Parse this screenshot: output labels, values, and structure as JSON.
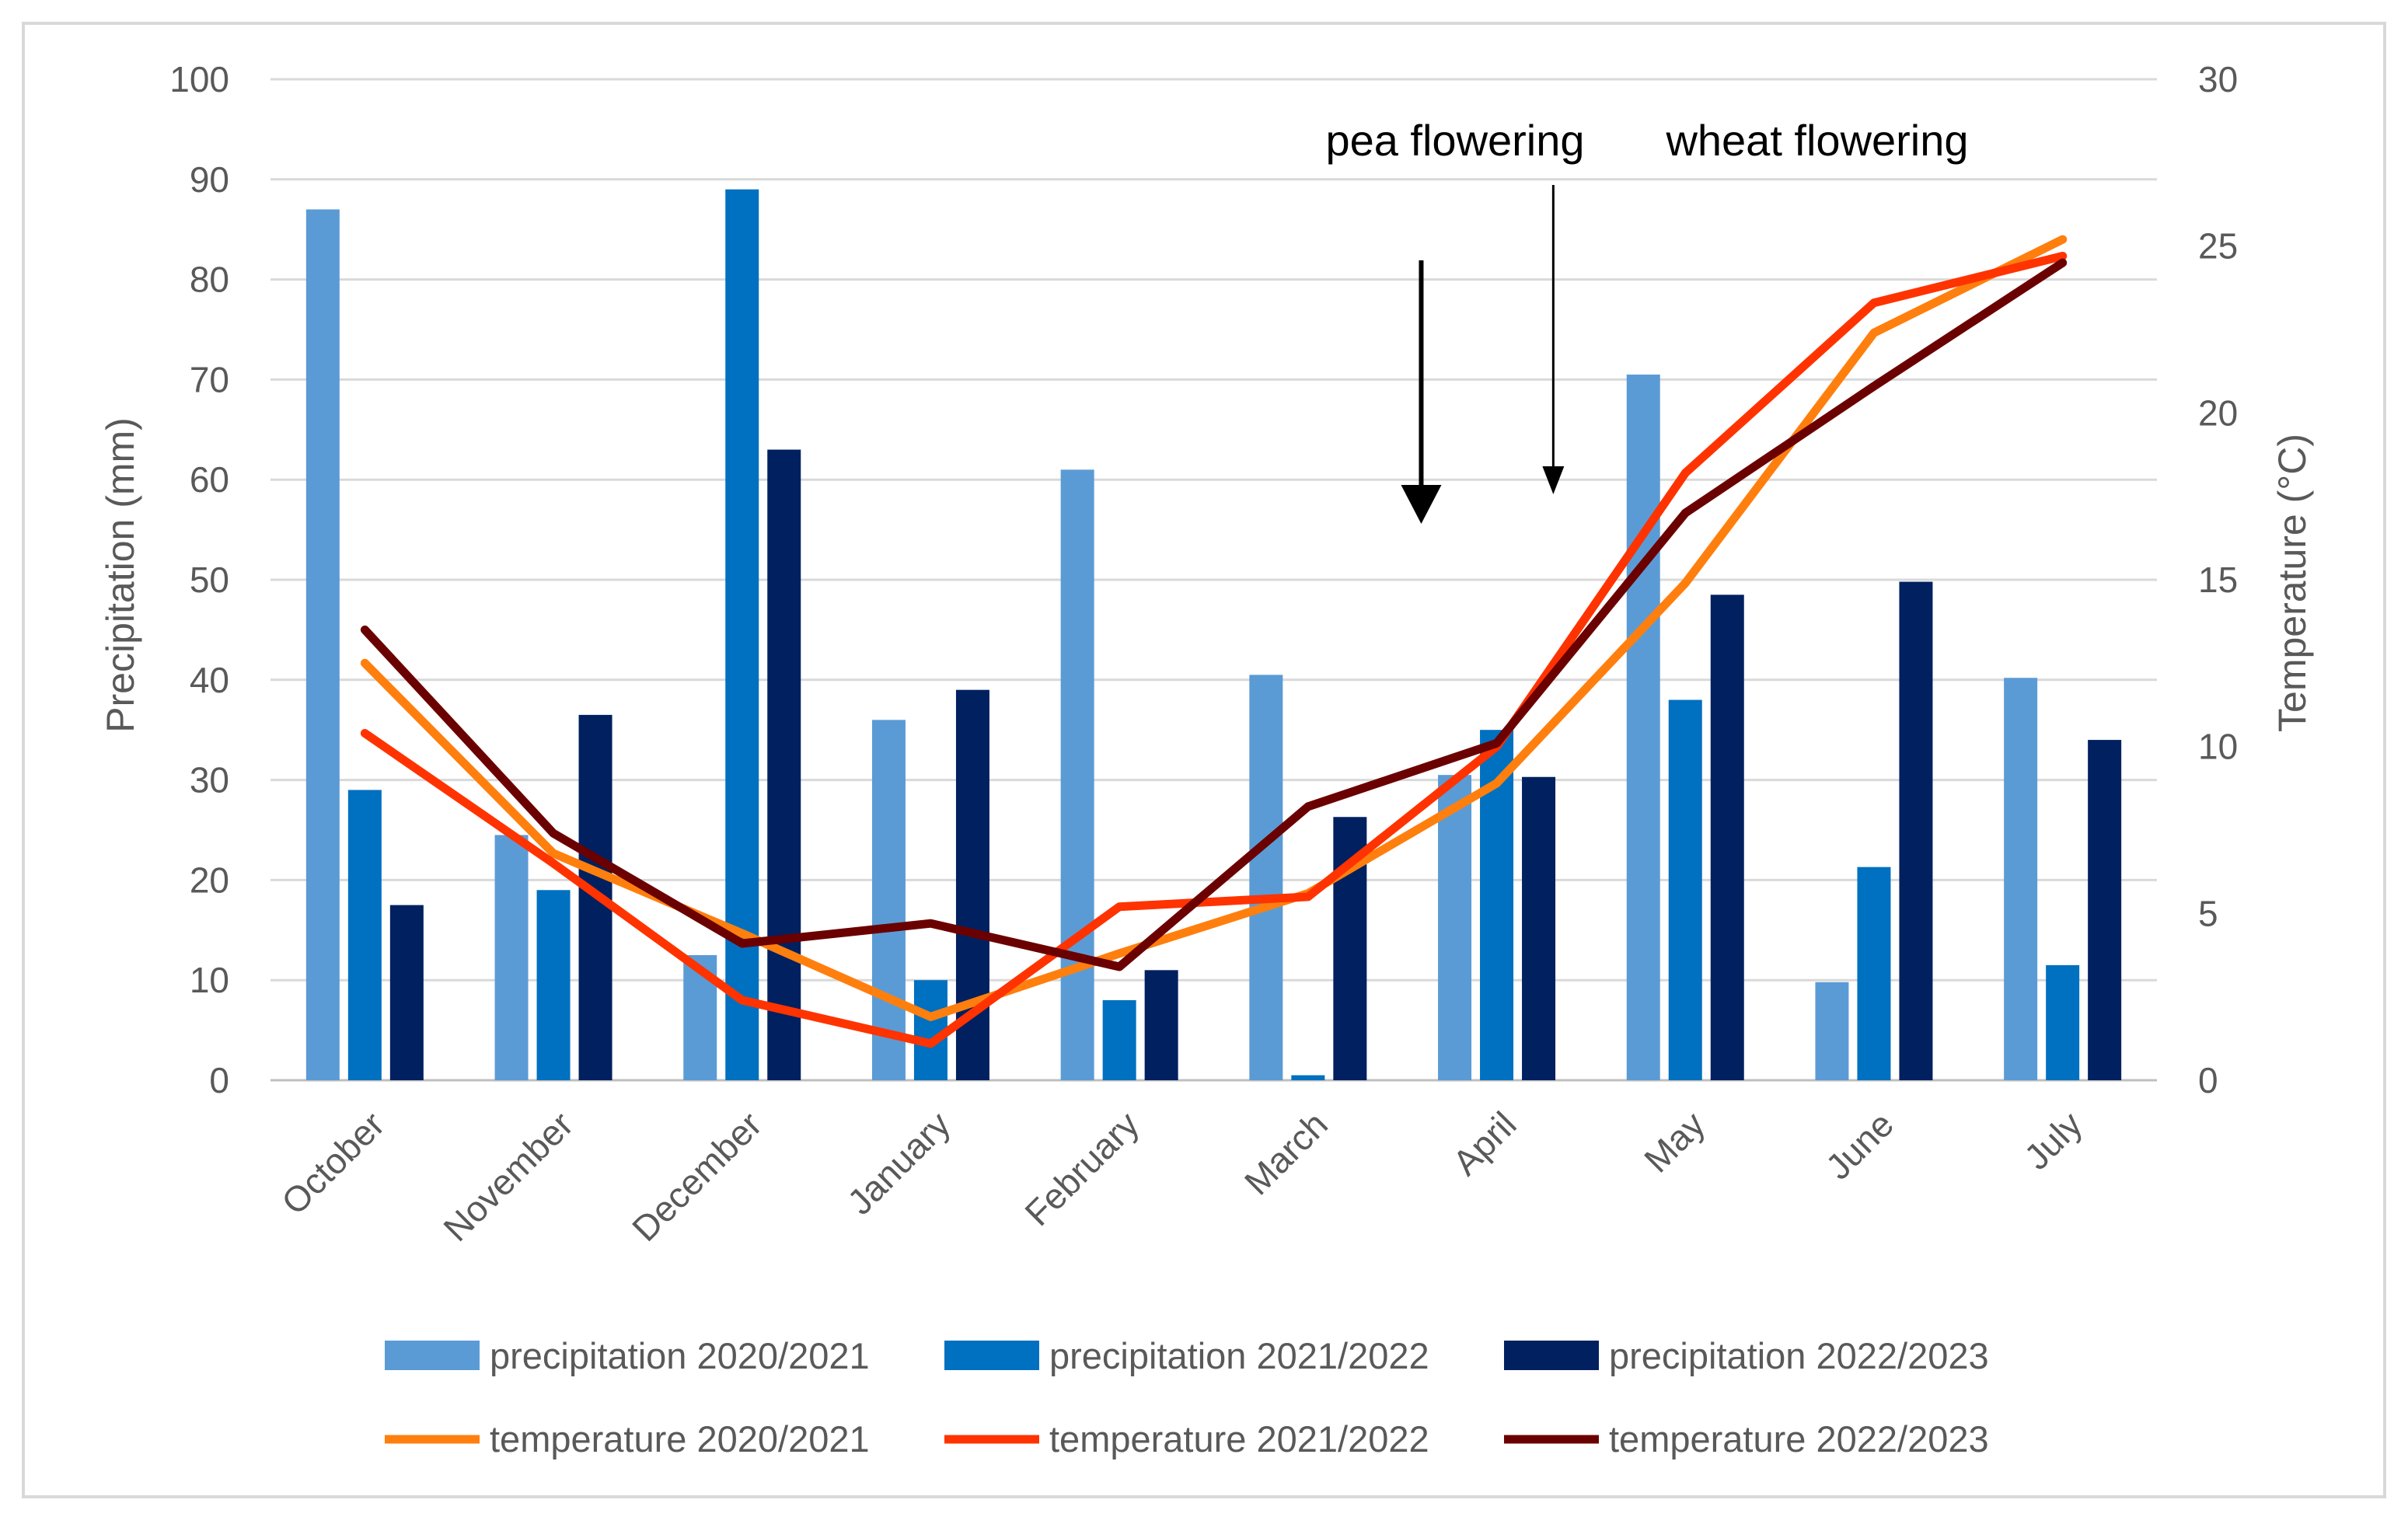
{
  "chart_data": {
    "type": "bar+line",
    "categories": [
      "October",
      "November",
      "December",
      "January",
      "February",
      "March",
      "April",
      "May",
      "June",
      "July"
    ],
    "precipitation_series": [
      {
        "name": "precipitation 2020/2021",
        "color": "#5B9BD5",
        "values": [
          87,
          24.5,
          12.5,
          36,
          61,
          40.5,
          30.5,
          70.5,
          9.8,
          40.2
        ]
      },
      {
        "name": "precipitation 2021/2022",
        "color": "#0070C0",
        "values": [
          29,
          19,
          89,
          10,
          8,
          0.5,
          35,
          38,
          21.3,
          11.5
        ]
      },
      {
        "name": "precipitation 2022/2023",
        "color": "#002060",
        "values": [
          17.5,
          36.5,
          63,
          39,
          11,
          26.3,
          30.3,
          48.5,
          49.8,
          34
        ]
      }
    ],
    "temperature_series": [
      {
        "name": "temperature 2020/2021",
        "color": "#FF7F0E",
        "values": [
          12.5,
          6.8,
          4.4,
          1.9,
          3.8,
          5.6,
          8.9,
          14.9,
          22.4,
          25.2
        ]
      },
      {
        "name": "temperature 2021/2022",
        "color": "#FF3300",
        "values": [
          10.4,
          6.5,
          2.4,
          1.1,
          5.2,
          5.5,
          10.0,
          18.2,
          23.3,
          24.7
        ]
      },
      {
        "name": "temperature 2022/2023",
        "color": "#6B0000",
        "values": [
          13.5,
          7.4,
          4.1,
          4.7,
          3.4,
          8.2,
          10.1,
          17.0,
          20.8,
          24.5
        ]
      }
    ],
    "y_left": {
      "label": "Precipitation (mm)",
      "min": 0,
      "max": 100,
      "ticks": [
        "0",
        "10",
        "20",
        "30",
        "40",
        "50",
        "60",
        "70",
        "80",
        "90",
        "100"
      ]
    },
    "y_right": {
      "label": "Temperature (°C)",
      "min": 0,
      "max": 30,
      "ticks": [
        "0",
        "5",
        "10",
        "15",
        "20",
        "25",
        "30"
      ]
    },
    "annotations": [
      {
        "text": "pea flowering",
        "arrow_category": "April",
        "arrow_offset": -0.4
      },
      {
        "text": "wheat flowering",
        "arrow_category": "April",
        "arrow_offset": 0.3
      }
    ],
    "legend_position": "bottom",
    "grid": true
  }
}
